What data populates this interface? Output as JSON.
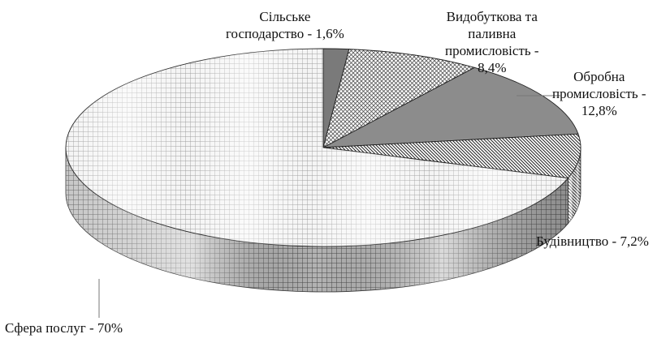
{
  "chart_data": {
    "type": "pie",
    "style": "3d-patterned-grayscale",
    "legend": "none",
    "slices": [
      {
        "name": "Сільське господарство",
        "value": 1.6,
        "label_lines": [
          "Сільське",
          "господарство - 1,6%"
        ],
        "color": "#7a7a7a",
        "pattern": "solid"
      },
      {
        "name": "Видобуткова та паливна промисловість",
        "value": 8.4,
        "label_lines": [
          "Видобуткова та",
          "паливна",
          "промисловість -",
          "8,4%"
        ],
        "color": "#ffffff",
        "pattern": "crosshatch"
      },
      {
        "name": "Обробна промисловість",
        "value": 12.8,
        "label_lines": [
          "Обробна",
          "промисловість -",
          "12,8%"
        ],
        "color": "#8c8c8c",
        "pattern": "solid"
      },
      {
        "name": "Будівництво",
        "value": 7.2,
        "label_lines": [
          "Будівництво - 7,2%"
        ],
        "color": "#ffffff",
        "pattern": "diagonal"
      },
      {
        "name": "Сфера послуг",
        "value": 70,
        "label_lines": [
          "Сфера послуг  - 70%"
        ],
        "color": "#f0f0f0",
        "pattern": "grid"
      }
    ]
  }
}
